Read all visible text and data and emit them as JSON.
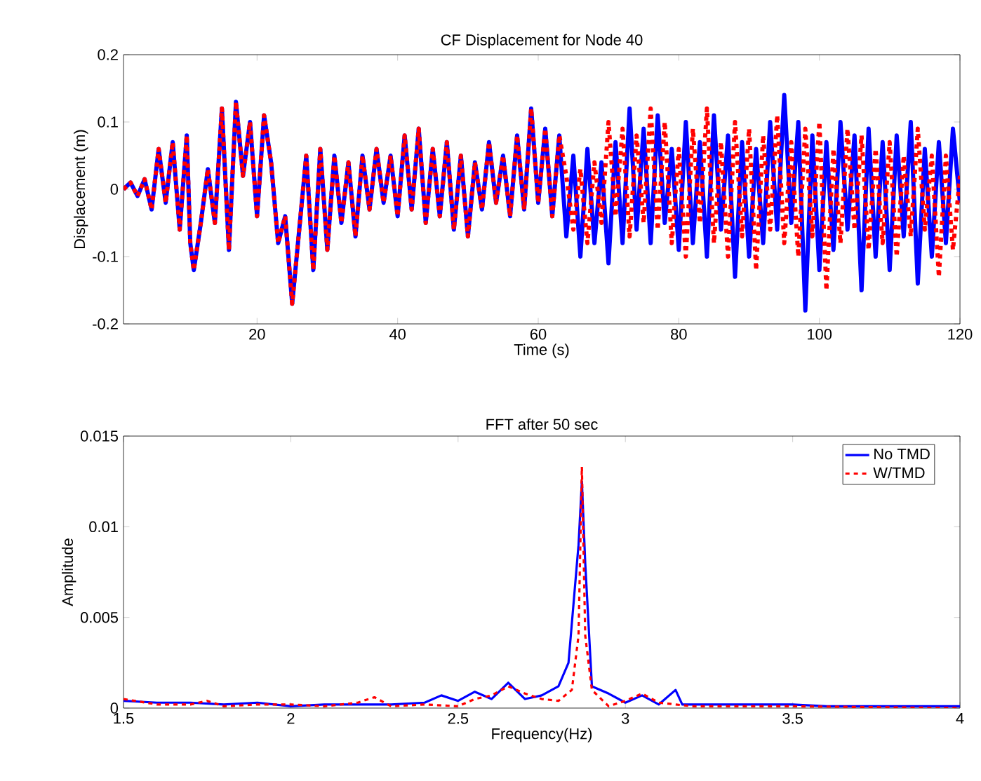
{
  "chart_data": [
    {
      "type": "line",
      "title": "CF Displacement for Node 40",
      "xlabel": "Time (s)",
      "ylabel": "Displacement (m)",
      "xlim": [
        1,
        120
      ],
      "ylim": [
        -0.2,
        0.2
      ],
      "xticks": [
        20,
        40,
        60,
        80,
        100,
        120
      ],
      "yticks": [
        -0.2,
        -0.1,
        0,
        0.1,
        0.2
      ],
      "x": [
        1,
        2,
        3,
        4,
        5,
        6,
        7,
        8,
        9,
        10,
        10.5,
        11,
        12,
        13,
        14,
        15,
        16,
        17,
        18,
        19,
        20,
        21,
        22,
        23,
        24,
        25,
        26,
        27,
        28,
        29,
        30,
        31,
        32,
        33,
        34,
        35,
        36,
        37,
        38,
        39,
        40,
        41,
        42,
        43,
        44,
        45,
        46,
        47,
        48,
        49,
        50,
        51,
        52,
        53,
        54,
        55,
        56,
        57,
        58,
        59,
        60,
        61,
        62,
        63,
        64,
        65,
        66,
        67,
        68,
        69,
        70,
        71,
        72,
        73,
        74,
        75,
        76,
        77,
        78,
        79,
        80,
        81,
        82,
        83,
        84,
        85,
        86,
        87,
        88,
        89,
        90,
        91,
        92,
        93,
        94,
        95,
        96,
        97,
        98,
        99,
        100,
        101,
        102,
        103,
        104,
        105,
        106,
        107,
        108,
        109,
        110,
        111,
        112,
        113,
        114,
        115,
        116,
        117,
        118,
        119,
        120
      ],
      "series": [
        {
          "color": "#0000ff",
          "line_style": "solid",
          "values": [
            0,
            0.01,
            -0.01,
            0.015,
            -0.03,
            0.06,
            -0.02,
            0.07,
            -0.06,
            0.08,
            -0.08,
            -0.12,
            -0.05,
            0.03,
            -0.05,
            0.12,
            -0.09,
            0.13,
            0.02,
            0.1,
            -0.04,
            0.11,
            0.04,
            -0.08,
            -0.04,
            -0.17,
            -0.06,
            0.05,
            -0.12,
            0.06,
            -0.09,
            0.05,
            -0.05,
            0.04,
            -0.07,
            0.05,
            -0.03,
            0.06,
            -0.02,
            0.05,
            -0.04,
            0.08,
            -0.03,
            0.09,
            -0.05,
            0.06,
            -0.04,
            0.07,
            -0.06,
            0.05,
            -0.07,
            0.04,
            -0.03,
            0.07,
            -0.02,
            0.05,
            -0.04,
            0.08,
            -0.03,
            0.12,
            -0.02,
            0.09,
            -0.04,
            0.08,
            -0.07,
            0.05,
            -0.1,
            0.06,
            -0.08,
            0.04,
            -0.11,
            0.07,
            -0.08,
            0.12,
            -0.06,
            0.09,
            -0.08,
            0.11,
            -0.05,
            0.06,
            -0.09,
            0.1,
            -0.08,
            0.07,
            -0.1,
            0.11,
            -0.06,
            0.08,
            -0.13,
            0.07,
            -0.1,
            0.06,
            -0.08,
            0.1,
            -0.06,
            0.14,
            -0.05,
            0.1,
            -0.18,
            0.08,
            -0.12,
            0.07,
            -0.09,
            0.1,
            -0.06,
            0.08,
            -0.15,
            0.09,
            -0.1,
            0.07,
            -0.12,
            0.08,
            -0.07,
            0.1,
            -0.14,
            0.06,
            -0.1,
            0.07,
            -0.08,
            0.09,
            -0.02
          ]
        },
        {
          "color": "#ff0000",
          "line_style": "dashed",
          "values": [
            0,
            0.01,
            -0.01,
            0.015,
            -0.03,
            0.06,
            -0.02,
            0.07,
            -0.06,
            0.08,
            -0.08,
            -0.12,
            -0.05,
            0.03,
            -0.05,
            0.12,
            -0.09,
            0.13,
            0.02,
            0.1,
            -0.04,
            0.11,
            0.04,
            -0.08,
            -0.04,
            -0.17,
            -0.06,
            0.05,
            -0.12,
            0.06,
            -0.09,
            0.05,
            -0.05,
            0.04,
            -0.07,
            0.05,
            -0.03,
            0.06,
            -0.02,
            0.05,
            -0.04,
            0.08,
            -0.03,
            0.09,
            -0.05,
            0.06,
            -0.04,
            0.07,
            -0.06,
            0.05,
            -0.07,
            0.04,
            -0.03,
            0.07,
            -0.02,
            0.05,
            -0.04,
            0.08,
            -0.03,
            0.12,
            -0.02,
            0.09,
            -0.04,
            0.08,
            0.02,
            -0.06,
            0.03,
            -0.08,
            0.04,
            -0.05,
            0.1,
            -0.04,
            0.09,
            -0.07,
            0.08,
            -0.05,
            0.12,
            -0.06,
            0.1,
            -0.08,
            0.06,
            -0.1,
            0.09,
            -0.05,
            0.12,
            -0.08,
            0.07,
            -0.1,
            0.1,
            -0.07,
            0.09,
            -0.12,
            0.08,
            -0.06,
            0.11,
            -0.08,
            0.07,
            -0.1,
            0.09,
            -0.07,
            0.1,
            -0.15,
            0.06,
            -0.08,
            0.09,
            -0.06,
            0.08,
            -0.09,
            0.06,
            -0.08,
            0.07,
            -0.1,
            0.05,
            -0.07,
            0.09,
            -0.06,
            0.05,
            -0.13,
            0.05,
            -0.09,
            0.02
          ]
        }
      ]
    },
    {
      "type": "line",
      "title": "FFT after 50 sec",
      "xlabel": "Frequency(Hz)",
      "ylabel": "Amplitude",
      "xlim": [
        1.5,
        4
      ],
      "ylim": [
        0,
        0.015
      ],
      "xticks": [
        1.5,
        2,
        2.5,
        3,
        3.5,
        4
      ],
      "yticks": [
        0,
        0.005,
        0.01,
        0.015
      ],
      "legend": "top right",
      "series": [
        {
          "name": "No TMD",
          "color": "#0000ff",
          "line_style": "solid",
          "x": [
            1.5,
            1.6,
            1.7,
            1.8,
            1.9,
            2.0,
            2.1,
            2.2,
            2.3,
            2.4,
            2.45,
            2.5,
            2.55,
            2.6,
            2.65,
            2.7,
            2.75,
            2.8,
            2.83,
            2.86,
            2.87,
            2.88,
            2.9,
            2.95,
            3.0,
            3.05,
            3.1,
            3.15,
            3.17,
            3.2,
            3.3,
            3.4,
            3.5,
            3.6,
            3.7,
            3.8,
            3.9,
            4.0
          ],
          "values": [
            0.0004,
            0.0003,
            0.0003,
            0.0002,
            0.0003,
            0.0001,
            0.0002,
            0.0002,
            0.0002,
            0.0003,
            0.0007,
            0.0004,
            0.0009,
            0.0005,
            0.0014,
            0.0005,
            0.0007,
            0.0012,
            0.0025,
            0.009,
            0.0125,
            0.008,
            0.0012,
            0.0008,
            0.0003,
            0.0007,
            0.0002,
            0.001,
            0.0002,
            0.0002,
            0.0002,
            0.0002,
            0.0002,
            0.0001,
            0.0001,
            0.0001,
            0.0001,
            0.0001
          ]
        },
        {
          "name": "W/TMD",
          "color": "#ff0000",
          "line_style": "dashed",
          "x": [
            1.5,
            1.6,
            1.7,
            1.75,
            1.8,
            1.9,
            2.0,
            2.1,
            2.2,
            2.25,
            2.3,
            2.4,
            2.5,
            2.55,
            2.6,
            2.65,
            2.7,
            2.75,
            2.8,
            2.84,
            2.86,
            2.87,
            2.88,
            2.9,
            2.95,
            3.0,
            3.05,
            3.1,
            3.2,
            3.3,
            3.5,
            4.0
          ],
          "values": [
            0.0005,
            0.0002,
            0.0002,
            0.0004,
            0.0001,
            0.0002,
            0.0002,
            0.0001,
            0.0003,
            0.0006,
            0.0001,
            0.0002,
            0.0001,
            0.0005,
            0.0007,
            0.0012,
            0.0008,
            0.0005,
            0.0004,
            0.001,
            0.004,
            0.0133,
            0.004,
            0.001,
            0.0001,
            0.0004,
            0.0008,
            0.0003,
            0.0001,
            0.0001,
            0.0001,
            0
          ]
        }
      ]
    }
  ]
}
